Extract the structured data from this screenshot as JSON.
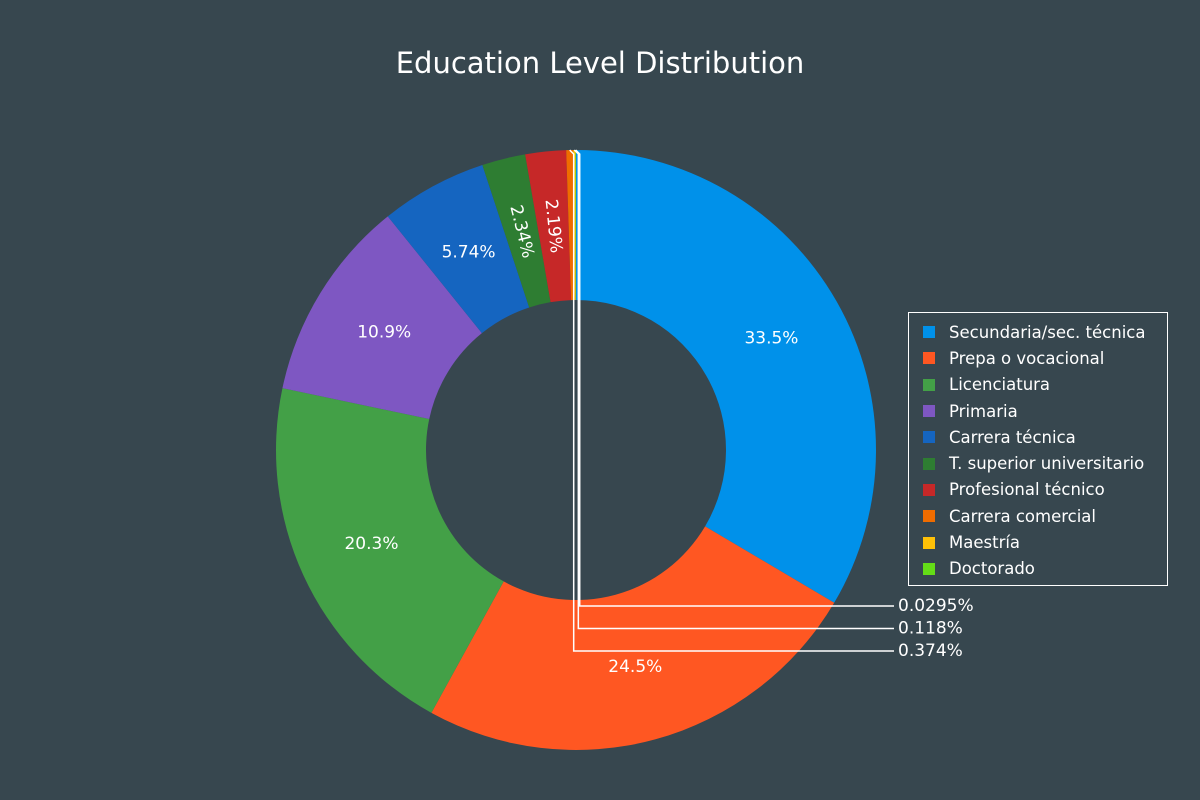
{
  "chart_data": {
    "type": "pie",
    "title": "Education Level Distribution",
    "hole": true,
    "legend_position": "right",
    "background": "#37474f",
    "slices": [
      {
        "label": "Secundaria/sec. técnica",
        "value": 33.5,
        "display": "33.5%",
        "color": "#0091ea"
      },
      {
        "label": "Prepa o vocacional",
        "value": 24.5,
        "display": "24.5%",
        "color": "#ff5722"
      },
      {
        "label": "Licenciatura",
        "value": 20.3,
        "display": "20.3%",
        "color": "#43a047"
      },
      {
        "label": "Primaria",
        "value": 10.9,
        "display": "10.9%",
        "color": "#7e57c2"
      },
      {
        "label": "Carrera técnica",
        "value": 5.74,
        "display": "5.74%",
        "color": "#1565c0"
      },
      {
        "label": "T. superior universitario",
        "value": 2.34,
        "display": "2.34%",
        "color": "#2e7d32"
      },
      {
        "label": "Profesional técnico",
        "value": 2.19,
        "display": "2.19%",
        "color": "#c62828"
      },
      {
        "label": "Carrera comercial",
        "value": 0.374,
        "display": "0.374%",
        "color": "#ef6c00"
      },
      {
        "label": "Maestría",
        "value": 0.118,
        "display": "0.118%",
        "color": "#ffc107"
      },
      {
        "label": "Doctorado",
        "value": 0.0295,
        "display": "0.0295%",
        "color": "#64dd17"
      }
    ]
  }
}
